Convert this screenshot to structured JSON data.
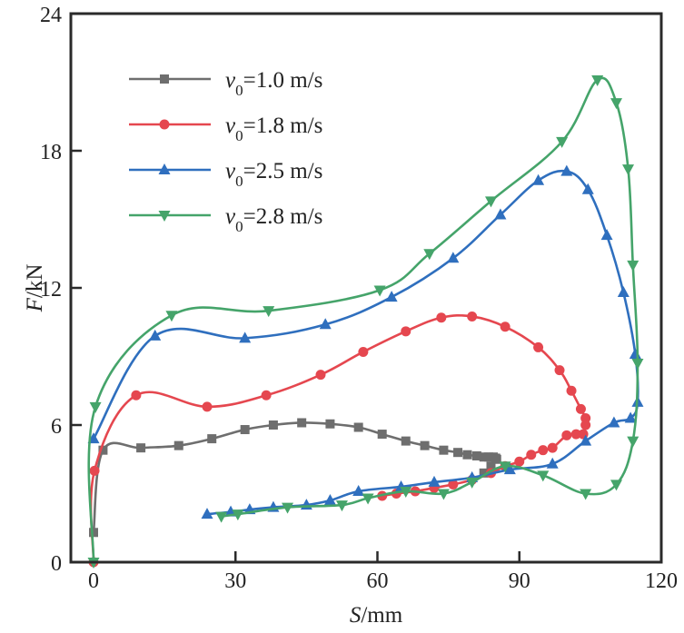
{
  "chart_data": {
    "type": "line",
    "title": "",
    "xlabel_var": "S",
    "xlabel_unit": "/mm",
    "ylabel_var": "F",
    "ylabel_unit": "/kN",
    "xlim": [
      0,
      120
    ],
    "ylim": [
      0,
      24
    ],
    "xticks": [
      "0",
      "30",
      "60",
      "90",
      "120"
    ],
    "yticks": [
      "0",
      "6",
      "12",
      "18",
      "24"
    ],
    "xtick_values": [
      0,
      30,
      60,
      90,
      120
    ],
    "ytick_values": [
      0,
      6,
      12,
      18,
      24
    ],
    "grid": false,
    "legend_position": "top-left",
    "series": [
      {
        "name": "v0=1.0 m/s",
        "legend_var": "v",
        "legend_sub": "0",
        "legend_rest": "=1.0 m/s",
        "color": "#6e6e6e",
        "marker": "square",
        "x": [
          0,
          2,
          10,
          18,
          25,
          32,
          38,
          44,
          50,
          56,
          61,
          66,
          70,
          74,
          77,
          79,
          81,
          82.5,
          83.5,
          84.5,
          85,
          85.2,
          84,
          82.5
        ],
        "y": [
          1.3,
          4.9,
          5.0,
          5.1,
          5.4,
          5.8,
          6.0,
          6.1,
          6.05,
          5.9,
          5.6,
          5.3,
          5.1,
          4.9,
          4.8,
          4.7,
          4.65,
          4.6,
          4.6,
          4.6,
          4.55,
          4.5,
          4.2,
          3.9
        ]
      },
      {
        "name": "v0=1.8 m/s",
        "legend_var": "v",
        "legend_sub": "0",
        "legend_rest": "=1.8 m/s",
        "color": "#e5474f",
        "marker": "circle",
        "x": [
          0,
          0.2,
          9,
          24,
          36.5,
          48,
          57,
          66,
          73.5,
          80,
          87,
          94,
          98.5,
          101,
          103,
          104,
          104,
          103.5,
          102,
          100,
          97,
          95,
          92.5,
          90,
          87,
          84,
          80,
          76,
          72,
          68,
          64,
          61
        ],
        "y": [
          0,
          4.0,
          7.3,
          6.8,
          7.3,
          8.2,
          9.2,
          10.1,
          10.7,
          10.75,
          10.3,
          9.4,
          8.4,
          7.5,
          6.7,
          6.3,
          6.0,
          5.6,
          5.6,
          5.55,
          5.0,
          4.9,
          4.7,
          4.4,
          4.2,
          3.9,
          3.6,
          3.4,
          3.25,
          3.1,
          3.0,
          2.9
        ]
      },
      {
        "name": "v0=2.5 m/s",
        "legend_var": "v",
        "legend_sub": "0",
        "legend_rest": "=2.5 m/s",
        "color": "#2f6fbe",
        "marker": "triangle-up",
        "x": [
          0,
          13,
          32,
          49,
          63,
          76,
          86,
          94,
          100,
          104.5,
          108.5,
          112,
          114.5,
          115,
          113.5,
          110,
          104,
          97,
          88,
          80,
          72,
          65,
          56,
          50,
          45,
          38,
          33,
          29,
          24
        ],
        "y": [
          5.4,
          9.9,
          9.8,
          10.4,
          11.6,
          13.3,
          15.2,
          16.7,
          17.1,
          16.3,
          14.3,
          11.8,
          9.1,
          7.0,
          6.3,
          6.1,
          5.3,
          4.3,
          4.05,
          3.7,
          3.5,
          3.3,
          3.1,
          2.7,
          2.5,
          2.4,
          2.3,
          2.2,
          2.1
        ]
      },
      {
        "name": "v0=2.8 m/s",
        "legend_var": "v",
        "legend_sub": "0",
        "legend_rest": "=2.8 m/s",
        "color": "#45a46a",
        "marker": "triangle-down",
        "x": [
          0,
          0.4,
          16.5,
          37,
          60.5,
          71,
          84,
          99,
          106.5,
          110.5,
          113,
          114,
          115,
          114,
          110.5,
          104,
          95,
          87,
          80,
          74,
          66,
          58,
          52.5,
          41,
          30.5,
          27
        ],
        "y": [
          0,
          6.8,
          10.8,
          11.0,
          11.9,
          13.5,
          15.8,
          18.4,
          21.1,
          20.1,
          17.2,
          13.0,
          8.7,
          5.3,
          3.4,
          3.0,
          3.8,
          4.2,
          3.5,
          3.0,
          3.1,
          2.8,
          2.5,
          2.4,
          2.1,
          2.0
        ]
      }
    ]
  }
}
